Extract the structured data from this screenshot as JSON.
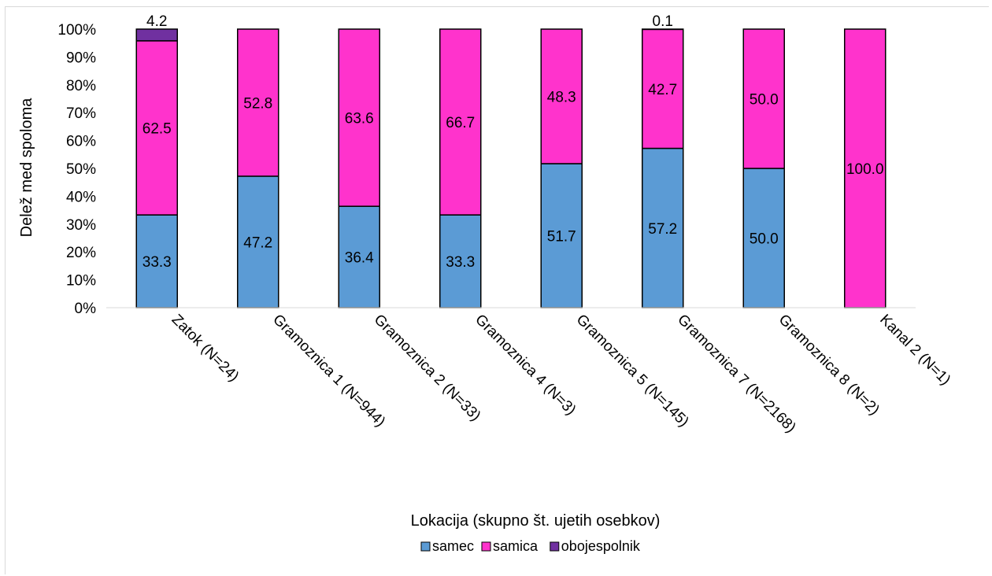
{
  "chart_data": {
    "type": "bar",
    "stacked": true,
    "normalized": true,
    "categories": [
      "Zatok (N=24)",
      "Gramoznica 1 (N=944)",
      "Gramoznica 2 (N=33)",
      "Gramoznica 4 (N=3)",
      "Gramoznica 5 (N=145)",
      "Gramoznica 7 (N=2168)",
      "Gramoznica 8 (N=2)",
      "Kanal 2 (N=1)"
    ],
    "series": [
      {
        "name": "samec",
        "color": "#5b9bd5",
        "values": [
          33.3,
          47.2,
          36.4,
          33.3,
          51.7,
          57.2,
          50.0,
          0
        ],
        "labels": [
          "33.3",
          "47.2",
          "36.4",
          "33.3",
          "51.7",
          "57.2",
          "50.0",
          ""
        ]
      },
      {
        "name": "samica",
        "color": "#ff33cc",
        "values": [
          62.5,
          52.8,
          63.6,
          66.7,
          48.3,
          42.7,
          50.0,
          100.0
        ],
        "labels": [
          "62.5",
          "52.8",
          "63.6",
          "66.7",
          "48.3",
          "42.7",
          "50.0",
          "100.0"
        ]
      },
      {
        "name": "obojespolnik",
        "color": "#7030a0",
        "values": [
          4.2,
          0,
          0,
          0,
          0,
          0.1,
          0,
          0
        ],
        "labels": [
          "4.2",
          "",
          "",
          "",
          "",
          "0.1",
          "",
          ""
        ]
      }
    ],
    "yticks": [
      "0%",
      "10%",
      "20%",
      "30%",
      "40%",
      "50%",
      "60%",
      "70%",
      "80%",
      "90%",
      "100%"
    ],
    "ylim": [
      0,
      100
    ],
    "xlabel": "Lokacija (skupno št. ujetih osebkov)",
    "ylabel": "Delež med spoloma",
    "legend_position": "bottom",
    "grid": false
  }
}
